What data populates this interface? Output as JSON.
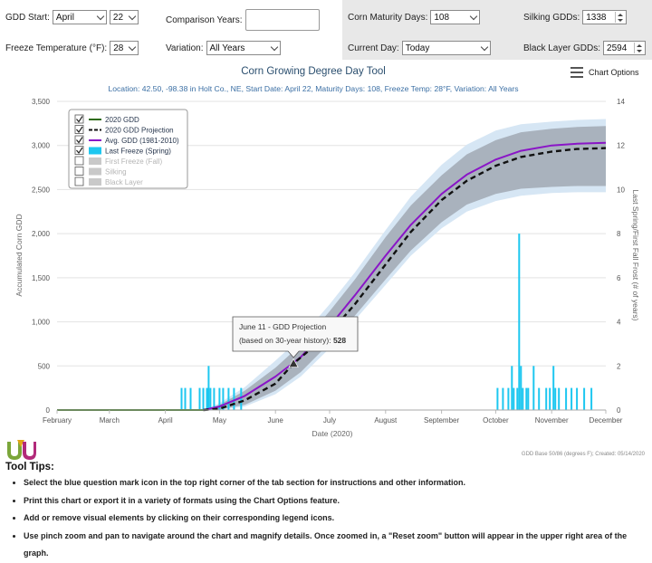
{
  "controls": {
    "gdd_start": {
      "label": "GDD Start:",
      "month": "April",
      "day": "22"
    },
    "comparison_years": {
      "label": "Comparison Years:",
      "value": ""
    },
    "corn_maturity_days": {
      "label": "Corn Maturity Days:",
      "value": "108"
    },
    "silking_gdds": {
      "label": "Silking GDDs:",
      "value": "1338"
    },
    "freeze_temperature": {
      "label": "Freeze Temperature (°F):",
      "value": "28"
    },
    "variation": {
      "label": "Variation:",
      "value": "All Years"
    },
    "current_day": {
      "label": "Current Day:",
      "value": "Today"
    },
    "black_layer_gdds": {
      "label": "Black Layer GDDs:",
      "value": "2594"
    }
  },
  "chart_options_label": "Chart Options",
  "chart_data": {
    "type": "line",
    "title": "Corn Growing Degree Day Tool",
    "subtitle": "Location: 42.50, -98.38 in Holt Co., NE, Start Date: April 22, Maturity Days: 108, Freeze Temp: 28°F, Variation: All Years",
    "xlabel": "Date (2020)",
    "ylabel": "Accumulated Corn GDD",
    "y2label": "Last Spring/First Fall Frost (# of years)",
    "x_ticks": [
      "February",
      "March",
      "April",
      "May",
      "June",
      "July",
      "August",
      "September",
      "October",
      "November",
      "December"
    ],
    "x_range": [
      "2020-02-01",
      "2020-12-01"
    ],
    "ylim": [
      0,
      3500
    ],
    "y_ticks": [
      0,
      500,
      1000,
      1500,
      2000,
      2500,
      3000,
      3500
    ],
    "y2lim": [
      0,
      14
    ],
    "y2_ticks": [
      0,
      2,
      4,
      6,
      8,
      10,
      12,
      14
    ],
    "grid": "horizontal",
    "legend": {
      "placement": "top-left",
      "items": [
        {
          "label": "2020 GDD",
          "checked": true,
          "enabled": true,
          "color": "#2e6b12",
          "style": "line"
        },
        {
          "label": "2020 GDD Projection",
          "checked": true,
          "enabled": true,
          "color": "#111111",
          "style": "dashed"
        },
        {
          "label": "Avg. GDD (1981-2010)",
          "checked": true,
          "enabled": true,
          "color": "#8a15c7",
          "style": "line"
        },
        {
          "label": "Last Freeze (Spring)",
          "checked": true,
          "enabled": true,
          "color": "#1dc7f0",
          "style": "box"
        },
        {
          "label": "First Freeze (Fall)",
          "checked": false,
          "enabled": false,
          "color": "#c9c9c9",
          "style": "box"
        },
        {
          "label": "Silking",
          "checked": false,
          "enabled": false,
          "color": "#c9c9c9",
          "style": "box"
        },
        {
          "label": "Black Layer",
          "checked": false,
          "enabled": false,
          "color": "#c9c9c9",
          "style": "box"
        }
      ]
    },
    "series": [
      {
        "name": "2020 GDD",
        "color": "#2e6b12",
        "points": [
          [
            "2020-02-01",
            0
          ],
          [
            "2020-04-22",
            0
          ]
        ]
      },
      {
        "name": "Avg. GDD (1981-2010)",
        "color": "#8a15c7",
        "points": [
          [
            "2020-04-22",
            0
          ],
          [
            "2020-05-01",
            40
          ],
          [
            "2020-05-15",
            160
          ],
          [
            "2020-06-01",
            380
          ],
          [
            "2020-06-15",
            600
          ],
          [
            "2020-07-01",
            950
          ],
          [
            "2020-07-15",
            1300
          ],
          [
            "2020-08-01",
            1750
          ],
          [
            "2020-08-15",
            2100
          ],
          [
            "2020-09-01",
            2450
          ],
          [
            "2020-09-15",
            2670
          ],
          [
            "2020-10-01",
            2840
          ],
          [
            "2020-10-15",
            2940
          ],
          [
            "2020-11-01",
            3000
          ],
          [
            "2020-11-15",
            3020
          ],
          [
            "2020-12-01",
            3030
          ]
        ]
      },
      {
        "name": "2020 GDD Projection",
        "color": "#111111",
        "points": [
          [
            "2020-04-22",
            0
          ],
          [
            "2020-05-01",
            15
          ],
          [
            "2020-05-15",
            110
          ],
          [
            "2020-06-01",
            300
          ],
          [
            "2020-06-11",
            528
          ],
          [
            "2020-07-01",
            870
          ],
          [
            "2020-07-15",
            1200
          ],
          [
            "2020-08-01",
            1650
          ],
          [
            "2020-08-15",
            2020
          ],
          [
            "2020-09-01",
            2380
          ],
          [
            "2020-09-15",
            2600
          ],
          [
            "2020-10-01",
            2770
          ],
          [
            "2020-10-15",
            2870
          ],
          [
            "2020-11-01",
            2930
          ],
          [
            "2020-11-15",
            2960
          ],
          [
            "2020-12-01",
            2970
          ]
        ]
      }
    ],
    "bands": [
      {
        "name": "outer range",
        "color": "#d6e6f4",
        "points": [
          [
            "2020-04-22",
            0,
            0
          ],
          [
            "2020-05-01",
            0,
            80
          ],
          [
            "2020-05-15",
            40,
            260
          ],
          [
            "2020-06-01",
            180,
            560
          ],
          [
            "2020-06-15",
            380,
            820
          ],
          [
            "2020-07-01",
            700,
            1200
          ],
          [
            "2020-07-15",
            1020,
            1560
          ],
          [
            "2020-08-01",
            1420,
            2040
          ],
          [
            "2020-08-15",
            1750,
            2420
          ],
          [
            "2020-09-01",
            2060,
            2780
          ],
          [
            "2020-09-15",
            2250,
            3010
          ],
          [
            "2020-10-01",
            2370,
            3170
          ],
          [
            "2020-10-15",
            2430,
            3240
          ],
          [
            "2020-11-01",
            2460,
            3270
          ],
          [
            "2020-11-15",
            2470,
            3290
          ],
          [
            "2020-12-01",
            2470,
            3300
          ]
        ]
      },
      {
        "name": "inner range",
        "color": "#a9b2bd",
        "points": [
          [
            "2020-04-22",
            0,
            0
          ],
          [
            "2020-05-01",
            5,
            60
          ],
          [
            "2020-05-15",
            60,
            220
          ],
          [
            "2020-06-01",
            220,
            480
          ],
          [
            "2020-06-15",
            430,
            740
          ],
          [
            "2020-07-01",
            760,
            1120
          ],
          [
            "2020-07-15",
            1070,
            1480
          ],
          [
            "2020-08-01",
            1480,
            1960
          ],
          [
            "2020-08-15",
            1810,
            2320
          ],
          [
            "2020-09-01",
            2130,
            2660
          ],
          [
            "2020-09-15",
            2330,
            2900
          ],
          [
            "2020-10-01",
            2450,
            3060
          ],
          [
            "2020-10-15",
            2510,
            3150
          ],
          [
            "2020-11-01",
            2530,
            3190
          ],
          [
            "2020-11-15",
            2540,
            3210
          ],
          [
            "2020-12-01",
            2540,
            3220
          ]
        ]
      }
    ],
    "last_freeze_spring": {
      "color": "#1dc7f0",
      "bars": [
        [
          "2020-04-10",
          1
        ],
        [
          "2020-04-12",
          1
        ],
        [
          "2020-04-15",
          1
        ],
        [
          "2020-04-20",
          1
        ],
        [
          "2020-04-22",
          1
        ],
        [
          "2020-04-24",
          1
        ],
        [
          "2020-04-25",
          2
        ],
        [
          "2020-04-26",
          1
        ],
        [
          "2020-04-28",
          1
        ],
        [
          "2020-05-01",
          1
        ],
        [
          "2020-05-03",
          1
        ],
        [
          "2020-05-06",
          1
        ],
        [
          "2020-05-09",
          1
        ],
        [
          "2020-05-13",
          1
        ]
      ]
    },
    "fall_bars": {
      "color": "#1dc7f0",
      "bars": [
        [
          "2020-10-02",
          1
        ],
        [
          "2020-10-05",
          1
        ],
        [
          "2020-10-08",
          1
        ],
        [
          "2020-10-10",
          2
        ],
        [
          "2020-10-11",
          1
        ],
        [
          "2020-10-13",
          1
        ],
        [
          "2020-10-14",
          8
        ],
        [
          "2020-10-15",
          2
        ],
        [
          "2020-10-16",
          1
        ],
        [
          "2020-10-18",
          1
        ],
        [
          "2020-10-19",
          1
        ],
        [
          "2020-10-22",
          2
        ],
        [
          "2020-10-25",
          1
        ],
        [
          "2020-10-29",
          1
        ],
        [
          "2020-10-31",
          1
        ],
        [
          "2020-11-02",
          2
        ],
        [
          "2020-11-03",
          1
        ],
        [
          "2020-11-05",
          1
        ],
        [
          "2020-11-09",
          1
        ],
        [
          "2020-11-12",
          1
        ],
        [
          "2020-11-15",
          1
        ],
        [
          "2020-11-19",
          1
        ],
        [
          "2020-11-23",
          1
        ]
      ]
    },
    "tooltip": {
      "date": "2020-06-11",
      "line1": "June 11 - GDD Projection",
      "line2": "(based on 30-year history):",
      "value": "528"
    },
    "footnote": "GDD Base 50/86 (degrees F); Created: 05/14/2020"
  },
  "tool_tips": {
    "title": "Tool Tips:",
    "items": [
      "Select the blue question mark icon in the top right corner of the tab section for instructions and other information.",
      "Print this chart or export it in a variety of formats using the Chart Options feature.",
      "Add or remove visual elements by clicking on their corresponding legend icons.",
      "Use pinch zoom and pan to navigate around the chart and magnify details. Once zoomed in, a \"Reset zoom\" button will appear in the upper right area of the graph."
    ]
  }
}
